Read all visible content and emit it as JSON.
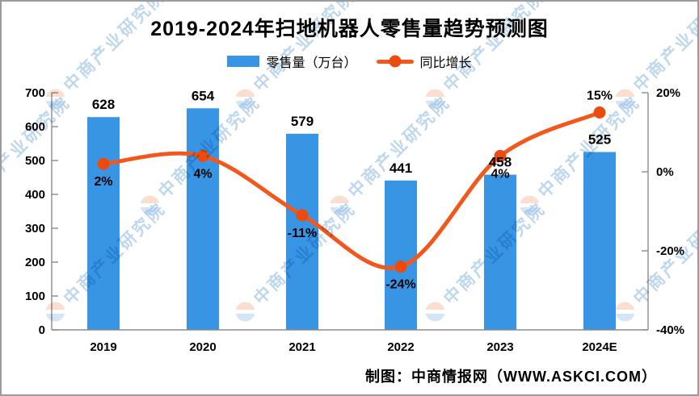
{
  "title": "2019-2024年扫地机器人零售量趋势预测图",
  "legend": {
    "bar": {
      "label": "零售量（万台）",
      "color": "#3795e3"
    },
    "line": {
      "label": "同比增长",
      "color": "#f4571b",
      "marker_color": "#ed4a0e"
    }
  },
  "footer": "制图：中商情报网（WWW.ASKCI.COM）",
  "watermark": {
    "text": "中商产业研究院",
    "text_color": "#7fb0dc",
    "logo_blue": "#a9cdec",
    "logo_orange": "#f6c0a2"
  },
  "chart_data": {
    "type": "combo-bar-line",
    "title": "2019-2024年扫地机器人零售量趋势预测图",
    "categories": [
      "2019",
      "2020",
      "2021",
      "2022",
      "2023",
      "2024E"
    ],
    "series": [
      {
        "name": "零售量（万台）",
        "type": "bar",
        "axis": "left",
        "color": "#3795e3",
        "values": [
          628,
          654,
          579,
          441,
          458,
          525
        ],
        "value_labels": [
          "628",
          "654",
          "579",
          "441",
          "458",
          "525"
        ]
      },
      {
        "name": "同比增长",
        "type": "line",
        "axis": "right",
        "color": "#f4571b",
        "marker_color": "#ed4a0e",
        "values": [
          2,
          4,
          -11,
          -24,
          4,
          15
        ],
        "point_labels": [
          "2%",
          "4%",
          "-11%",
          "-24%",
          "4%",
          "15%"
        ],
        "label_position": [
          "below",
          "below",
          "below",
          "below",
          "below",
          "above"
        ]
      }
    ],
    "left_axis": {
      "min": 0,
      "max": 700,
      "step": 100,
      "tick_labels": [
        "0",
        "100",
        "200",
        "300",
        "400",
        "500",
        "600",
        "700"
      ]
    },
    "right_axis": {
      "min": -40,
      "max": 20,
      "step": 20,
      "tick_labels": [
        "20%",
        "0%",
        "-20%",
        "-40%"
      ]
    },
    "grid": false,
    "legend_position": "top",
    "axis_color": "#8c8c8c"
  }
}
